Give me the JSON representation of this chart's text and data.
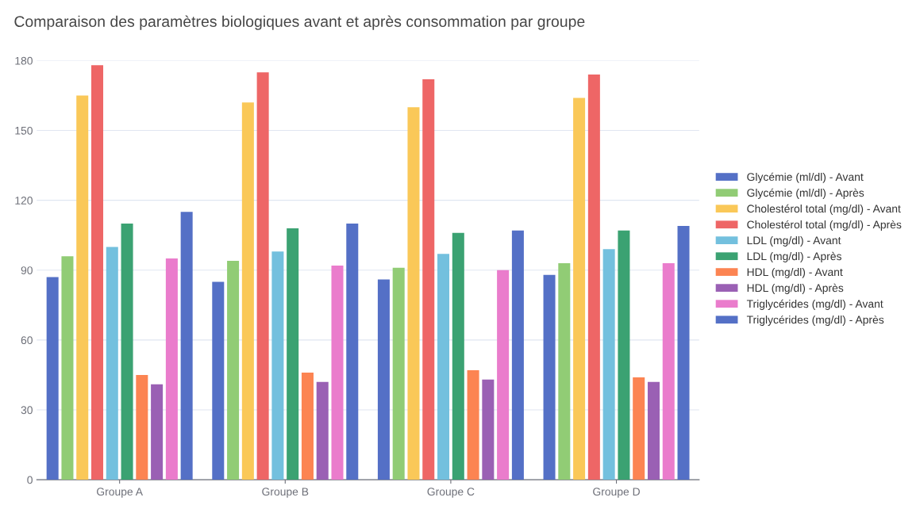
{
  "chart_data": {
    "type": "bar",
    "title": "Comparaison des paramètres biologiques avant et après consommation par groupe",
    "categories": [
      "Groupe A",
      "Groupe B",
      "Groupe C",
      "Groupe D"
    ],
    "series": [
      {
        "name": "Glycémie (ml/dl) - Avant",
        "color": "#5470c6",
        "values": [
          87,
          85,
          86,
          88
        ]
      },
      {
        "name": "Glycémie (ml/dl) - Après",
        "color": "#91cc75",
        "values": [
          96,
          94,
          91,
          93
        ]
      },
      {
        "name": "Cholestérol total (mg/dl) - Avant",
        "color": "#fac858",
        "values": [
          165,
          162,
          160,
          164
        ]
      },
      {
        "name": "Cholestérol total (mg/dl) - Après",
        "color": "#ee6666",
        "values": [
          178,
          175,
          172,
          174
        ]
      },
      {
        "name": "LDL (mg/dl) - Avant",
        "color": "#73c0de",
        "values": [
          100,
          98,
          97,
          99
        ]
      },
      {
        "name": "LDL (mg/dl) - Après",
        "color": "#3ba272",
        "values": [
          110,
          108,
          106,
          107
        ]
      },
      {
        "name": "HDL (mg/dl) - Avant",
        "color": "#fc8452",
        "values": [
          45,
          46,
          47,
          44
        ]
      },
      {
        "name": "HDL (mg/dl) - Après",
        "color": "#9a60b4",
        "values": [
          41,
          42,
          43,
          42
        ]
      },
      {
        "name": "Triglycérides (mg/dl) - Avant",
        "color": "#ea7ccc",
        "values": [
          95,
          92,
          90,
          93
        ]
      },
      {
        "name": "Triglycérides (mg/dl) - Après",
        "color": "#5470c6",
        "values": [
          115,
          110,
          107,
          109
        ]
      }
    ],
    "ylim": [
      0,
      180
    ],
    "yticks": [
      0,
      30,
      60,
      90,
      120,
      150,
      180
    ],
    "grid": "y",
    "legend": "right"
  }
}
